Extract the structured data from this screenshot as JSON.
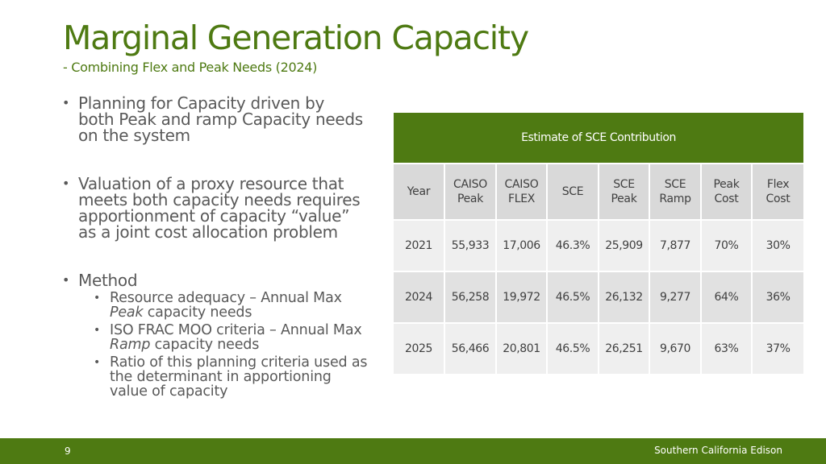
{
  "title": "Marginal Generation Capacity",
  "subtitle": "- Combining Flex and Peak Needs (2024)",
  "bullets": {
    "b1_lines": [
      "Planning for Capacity driven by",
      "both Peak and ramp Capacity needs",
      "on the system"
    ],
    "b2_lines": [
      "Valuation of a proxy resource that",
      "meets both capacity needs requires",
      "apportionment of capacity “value”",
      "as a joint cost allocation problem"
    ],
    "b3": "Method",
    "sub1": {
      "a": "Resource adequacy – Annual Max",
      "b_em": "Peak",
      "b_rest": " capacity needs"
    },
    "sub2": {
      "a": "ISO FRAC MOO criteria – Annual Max",
      "b_em": "Ramp",
      "b_rest": " capacity needs"
    },
    "sub3_lines": [
      "Ratio of this planning criteria used as",
      "the determinant in apportioning",
      "value of capacity"
    ]
  },
  "table": {
    "caption": "Estimate of SCE Contribution",
    "headers": [
      [
        "Year"
      ],
      [
        "CAISO",
        "Peak"
      ],
      [
        "CAISO",
        "FLEX"
      ],
      [
        "SCE"
      ],
      [
        "SCE",
        "Peak"
      ],
      [
        "SCE",
        "Ramp"
      ],
      [
        "Peak",
        "Cost"
      ],
      [
        "Flex",
        "Cost"
      ]
    ],
    "rows": [
      [
        "2021",
        "55,933",
        "17,006",
        "46.3%",
        "25,909",
        "7,877",
        "70%",
        "30%"
      ],
      [
        "2024",
        "56,258",
        "19,972",
        "46.5%",
        "26,132",
        "9,277",
        "64%",
        "36%"
      ],
      [
        "2025",
        "56,466",
        "20,801",
        "46.5%",
        "26,251",
        "9,670",
        "63%",
        "37%"
      ]
    ]
  },
  "footer": {
    "page_number": "9",
    "company": "Southern California Edison"
  },
  "colors": {
    "accent": "#4e7a12",
    "header_cell": "#d9d9d9",
    "row_light": "#efefef",
    "row_dark": "#e1e1e1"
  }
}
